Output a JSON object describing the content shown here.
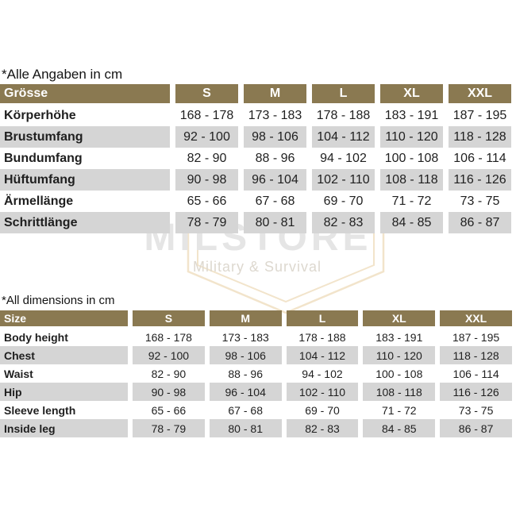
{
  "colors": {
    "header_bg": "#8a7951",
    "header_text": "#ffffff",
    "row_alt_bg": "#d5d5d5",
    "row_bg": "#ffffff",
    "text": "#1f1f1f",
    "wm_text": "#e5e5e5",
    "wm_sub": "#ddd8cf",
    "wm_shield": "#f2e4cb"
  },
  "watermark": {
    "line1": "MILSTORE",
    "line2": "Military & Survival"
  },
  "chart_data": [
    {
      "type": "table",
      "title": "*Alle Angaben in cm",
      "header": {
        "label": "Grösse",
        "sizes": [
          "S",
          "M",
          "L",
          "XL",
          "XXL"
        ]
      },
      "rows": [
        {
          "label": "Körperhöhe",
          "values": [
            "168 - 178",
            "173 - 183",
            "178 - 188",
            "183 - 191",
            "187 - 195"
          ]
        },
        {
          "label": "Brustumfang",
          "values": [
            "92 - 100",
            "98 - 106",
            "104 - 112",
            "110 - 120",
            "118 - 128"
          ]
        },
        {
          "label": "Bundumfang",
          "values": [
            "82 - 90",
            "88 - 96",
            "94 - 102",
            "100 - 108",
            "106 - 114"
          ]
        },
        {
          "label": "Hüftumfang",
          "values": [
            "90 - 98",
            "96 - 104",
            "102 - 110",
            "108 - 118",
            "116 - 126"
          ]
        },
        {
          "label": "Ärmellänge",
          "values": [
            "65 - 66",
            "67 - 68",
            "69 - 70",
            "71 - 72",
            "73 - 75"
          ]
        },
        {
          "label": "Schrittlänge",
          "values": [
            "78 - 79",
            "80 - 81",
            "82 - 83",
            "84 - 85",
            "86 - 87"
          ]
        }
      ]
    },
    {
      "type": "table",
      "title": "*All dimensions in cm",
      "header": {
        "label": "Size",
        "sizes": [
          "S",
          "M",
          "L",
          "XL",
          "XXL"
        ]
      },
      "rows": [
        {
          "label": "Body height",
          "values": [
            "168 - 178",
            "173 - 183",
            "178 - 188",
            "183 - 191",
            "187 - 195"
          ]
        },
        {
          "label": "Chest",
          "values": [
            "92 - 100",
            "98 - 106",
            "104 - 112",
            "110 - 120",
            "118 - 128"
          ]
        },
        {
          "label": "Waist",
          "values": [
            "82 - 90",
            "88 - 96",
            "94 - 102",
            "100 - 108",
            "106 - 114"
          ]
        },
        {
          "label": "Hip",
          "values": [
            "90 - 98",
            "96 - 104",
            "102 - 110",
            "108 - 118",
            "116 - 126"
          ]
        },
        {
          "label": "Sleeve length",
          "values": [
            "65 - 66",
            "67 - 68",
            "69 - 70",
            "71 - 72",
            "73 - 75"
          ]
        },
        {
          "label": "Inside leg",
          "values": [
            "78 - 79",
            "80 - 81",
            "82 - 83",
            "84 - 85",
            "86 - 87"
          ]
        }
      ]
    }
  ]
}
